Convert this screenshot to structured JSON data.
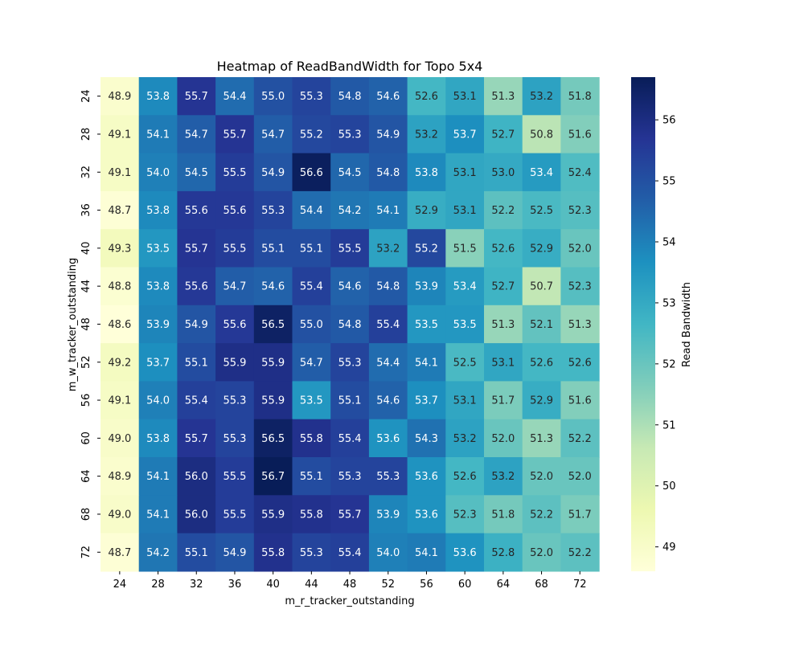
{
  "chart_data": {
    "type": "heatmap",
    "title": "Heatmap of ReadBandWidth for Topo 5x4",
    "xlabel": "m_r_tracker_outstanding",
    "ylabel": "m_w_tracker_outstanding",
    "x": [
      "24",
      "28",
      "32",
      "36",
      "40",
      "44",
      "48",
      "52",
      "56",
      "60",
      "64",
      "68",
      "72"
    ],
    "y": [
      "24",
      "28",
      "32",
      "36",
      "40",
      "44",
      "48",
      "52",
      "56",
      "60",
      "64",
      "68",
      "72"
    ],
    "values": [
      [
        48.9,
        53.8,
        55.7,
        54.4,
        55.0,
        55.3,
        54.8,
        54.6,
        52.6,
        53.1,
        51.3,
        53.2,
        51.8
      ],
      [
        49.1,
        54.1,
        54.7,
        55.7,
        54.7,
        55.2,
        55.3,
        54.9,
        53.2,
        53.7,
        52.7,
        50.8,
        51.6
      ],
      [
        49.1,
        54.0,
        54.5,
        55.5,
        54.9,
        56.6,
        54.5,
        54.8,
        53.8,
        53.1,
        53.0,
        53.4,
        52.4
      ],
      [
        48.7,
        53.8,
        55.6,
        55.6,
        55.3,
        54.4,
        54.2,
        54.1,
        52.9,
        53.1,
        52.2,
        52.5,
        52.3
      ],
      [
        49.3,
        53.5,
        55.7,
        55.5,
        55.1,
        55.1,
        55.5,
        53.2,
        55.2,
        51.5,
        52.6,
        52.9,
        52.0
      ],
      [
        48.8,
        53.8,
        55.6,
        54.7,
        54.6,
        55.4,
        54.6,
        54.8,
        53.9,
        53.4,
        52.7,
        50.7,
        52.3
      ],
      [
        48.6,
        53.9,
        54.9,
        55.6,
        56.5,
        55.0,
        54.8,
        55.4,
        53.5,
        53.5,
        51.3,
        52.1,
        51.3
      ],
      [
        49.2,
        53.7,
        55.1,
        55.9,
        55.9,
        54.7,
        55.3,
        54.4,
        54.1,
        52.5,
        53.1,
        52.6,
        52.6
      ],
      [
        49.1,
        54.0,
        55.4,
        55.3,
        55.9,
        53.5,
        55.1,
        54.6,
        53.7,
        53.1,
        51.7,
        52.9,
        51.6
      ],
      [
        49.0,
        53.8,
        55.7,
        55.3,
        56.5,
        55.8,
        55.4,
        53.6,
        54.3,
        53.2,
        52.0,
        51.3,
        52.2
      ],
      [
        48.9,
        54.1,
        56.0,
        55.5,
        56.7,
        55.1,
        55.3,
        55.3,
        53.6,
        52.6,
        53.2,
        52.0,
        52.0
      ],
      [
        49.0,
        54.1,
        56.0,
        55.5,
        55.9,
        55.8,
        55.7,
        53.9,
        53.6,
        52.3,
        51.8,
        52.2,
        51.7
      ],
      [
        48.7,
        54.2,
        55.1,
        54.9,
        55.8,
        55.3,
        55.4,
        54.0,
        54.1,
        53.6,
        52.8,
        52.0,
        52.2
      ]
    ],
    "colorbar": {
      "label": "Read Bandwidth",
      "ticks": [
        49,
        50,
        51,
        52,
        53,
        54,
        55,
        56
      ],
      "range": [
        48.6,
        56.7
      ],
      "colormap": "YlGnBu"
    }
  }
}
